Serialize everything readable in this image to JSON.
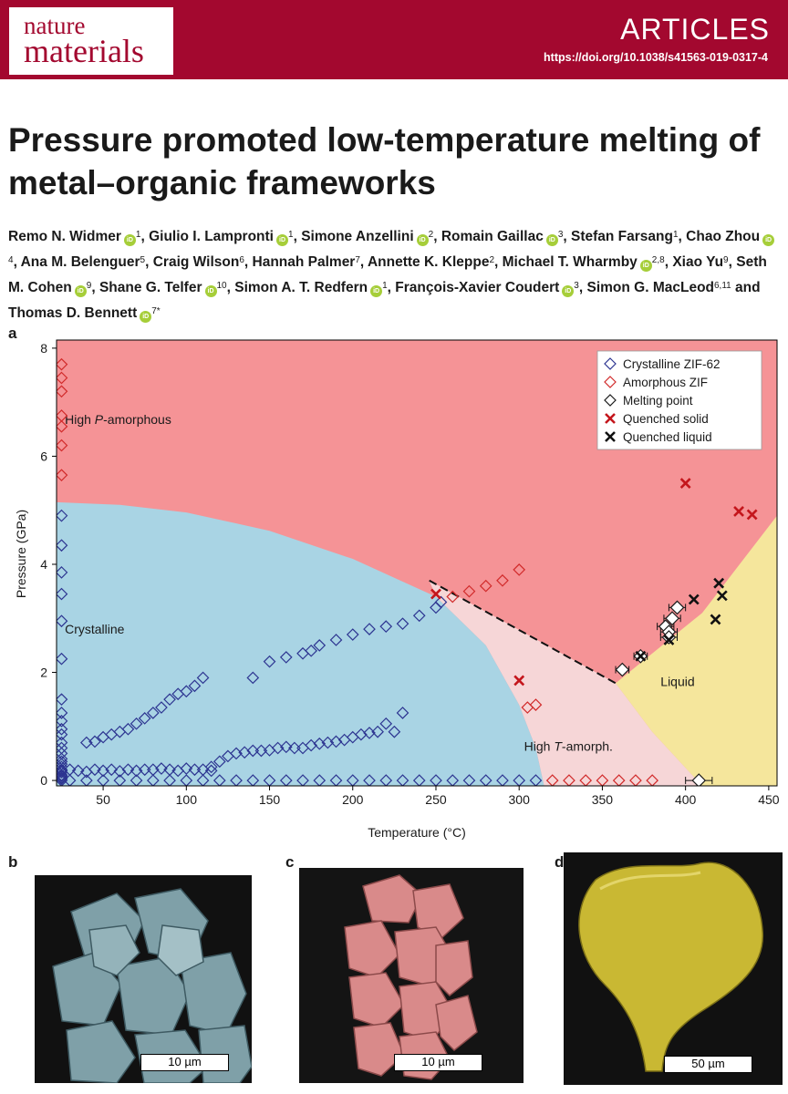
{
  "journal": {
    "line1": "nature",
    "line2": "materials"
  },
  "section": "ARTICLES",
  "doi": "https://doi.org/10.1038/s41563-019-0317-4",
  "title": "Pressure promoted low-temperature melting of metal–organic frameworks",
  "authors": [
    {
      "name": "Remo N. Widmer",
      "orcid": true,
      "aff": "1"
    },
    {
      "name": "Giulio I. Lampronti",
      "orcid": true,
      "aff": "1"
    },
    {
      "name": "Simone Anzellini",
      "orcid": true,
      "aff": "2"
    },
    {
      "name": "Romain Gaillac",
      "orcid": true,
      "aff": "3"
    },
    {
      "name": "Stefan Farsang",
      "orcid": false,
      "aff": "1"
    },
    {
      "name": "Chao Zhou",
      "orcid": true,
      "aff": "4"
    },
    {
      "name": "Ana M. Belenguer",
      "orcid": false,
      "aff": "5"
    },
    {
      "name": "Craig Wilson",
      "orcid": false,
      "aff": "6"
    },
    {
      "name": "Hannah Palmer",
      "orcid": false,
      "aff": "7"
    },
    {
      "name": "Annette K. Kleppe",
      "orcid": false,
      "aff": "2"
    },
    {
      "name": "Michael T. Wharmby",
      "orcid": true,
      "aff": "2,8"
    },
    {
      "name": "Xiao Yu",
      "orcid": false,
      "aff": "9"
    },
    {
      "name": "Seth M. Cohen",
      "orcid": true,
      "aff": "9"
    },
    {
      "name": "Shane G. Telfer",
      "orcid": true,
      "aff": "10"
    },
    {
      "name": "Simon A. T. Redfern",
      "orcid": true,
      "aff": "1"
    },
    {
      "name": "François-Xavier Coudert",
      "orcid": true,
      "aff": "3"
    },
    {
      "name": "Simon G. MacLeod",
      "orcid": false,
      "aff": "6,11"
    },
    {
      "name": "Thomas D. Bennett",
      "orcid": true,
      "aff": "7*"
    }
  ],
  "author_separator": ", ",
  "author_last_joiner": " and ",
  "orcid_badge": "iD",
  "panels": {
    "a": "a",
    "b": "b",
    "c": "c",
    "d": "d"
  },
  "chart_data": {
    "type": "scatter",
    "xlabel": "Temperature (°C)",
    "ylabel": "Pressure (GPa)",
    "xlim": [
      22,
      455
    ],
    "ylim": [
      -0.1,
      8.15
    ],
    "xticks": [
      50,
      100,
      150,
      200,
      250,
      300,
      350,
      400,
      450
    ],
    "yticks": [
      0,
      2,
      4,
      6,
      8
    ],
    "legend_position": "top-right",
    "colors": {
      "high_p_amorphous": "#f59396",
      "crystalline": "#a9d4e4",
      "high_t_amorph": "#f6d6d7",
      "liquid": "#f5e69c",
      "crystalline_marker": "#2d3591",
      "amorphous_marker": "#d12a2a",
      "melting_marker": "#1a1a1a",
      "quenched_solid": "#c4161c",
      "quenched_liquid": "#111111"
    },
    "regions": [
      {
        "name": "High P-amorphous",
        "label_prefix": "High ",
        "label_italic": "P",
        "label_suffix": "-amorphous",
        "label_at": [
          27,
          6.6
        ]
      },
      {
        "name": "Crystalline",
        "label_prefix": "Crystalline",
        "label_italic": "",
        "label_suffix": "",
        "label_at": [
          27,
          2.72
        ]
      },
      {
        "name": "High T-amorph.",
        "label_prefix": "High ",
        "label_italic": "T",
        "label_suffix": "-amorph.",
        "label_at": [
          303,
          0.55
        ]
      },
      {
        "name": "Liquid",
        "label_prefix": "Liquid",
        "label_italic": "",
        "label_suffix": "",
        "label_at": [
          385,
          1.75
        ]
      }
    ],
    "boundaries": {
      "crystalline": [
        [
          22,
          5.15
        ],
        [
          60,
          5.1
        ],
        [
          100,
          4.96
        ],
        [
          150,
          4.62
        ],
        [
          200,
          4.1
        ],
        [
          250,
          3.4
        ],
        [
          280,
          2.5
        ],
        [
          300,
          1.4
        ],
        [
          310,
          0.6
        ],
        [
          315,
          -0.1
        ]
      ],
      "dashed_melting_line": [
        [
          246,
          3.7
        ],
        [
          358,
          1.8
        ]
      ],
      "liquid": [
        [
          358,
          1.8
        ],
        [
          410,
          3.1
        ],
        [
          455,
          4.9
        ],
        [
          455,
          -0.1
        ],
        [
          410,
          -0.1
        ],
        [
          380,
          0.9
        ]
      ]
    },
    "series": [
      {
        "name": "Crystalline ZIF-62",
        "marker": "diamond-open",
        "color": "#2d3591",
        "x": [
          25,
          25,
          25,
          25,
          25,
          25,
          25,
          25,
          25,
          25,
          25,
          25,
          25,
          25,
          25,
          25,
          25,
          25,
          25,
          25,
          25,
          25,
          25,
          25,
          25,
          25,
          30,
          35,
          40,
          45,
          50,
          55,
          60,
          65,
          70,
          75,
          80,
          85,
          90,
          95,
          100,
          105,
          110,
          115,
          40,
          45,
          50,
          55,
          60,
          65,
          70,
          75,
          80,
          85,
          90,
          95,
          100,
          105,
          110,
          115,
          120,
          125,
          130,
          135,
          140,
          145,
          150,
          155,
          160,
          165,
          170,
          175,
          180,
          185,
          190,
          195,
          200,
          205,
          210,
          215,
          220,
          225,
          230,
          140,
          150,
          160,
          170,
          175,
          180,
          190,
          200,
          210,
          220,
          230,
          240,
          250,
          253,
          30,
          40,
          50,
          60,
          70,
          80,
          90,
          100,
          110,
          120,
          130,
          140,
          150,
          160,
          170,
          180,
          190,
          200,
          210,
          220,
          230,
          240,
          250,
          260,
          270,
          280,
          290,
          300,
          310
        ],
        "y": [
          4.9,
          4.35,
          3.85,
          3.45,
          2.95,
          2.25,
          1.5,
          1.25,
          1.1,
          0.95,
          0.85,
          0.7,
          0.6,
          0.5,
          0.4,
          0.35,
          0.3,
          0.25,
          0.2,
          0.18,
          0.15,
          0.1,
          0.08,
          0.05,
          0.03,
          0,
          0.2,
          0.18,
          0.16,
          0.2,
          0.18,
          0.2,
          0.17,
          0.2,
          0.18,
          0.2,
          0.2,
          0.22,
          0.2,
          0.18,
          0.22,
          0.2,
          0.2,
          0.18,
          0.7,
          0.72,
          0.8,
          0.85,
          0.9,
          0.95,
          1.05,
          1.15,
          1.25,
          1.35,
          1.5,
          1.6,
          1.65,
          1.75,
          1.9,
          0.25,
          0.35,
          0.45,
          0.5,
          0.52,
          0.55,
          0.55,
          0.56,
          0.6,
          0.62,
          0.6,
          0.6,
          0.65,
          0.68,
          0.7,
          0.72,
          0.75,
          0.8,
          0.85,
          0.88,
          0.9,
          1.05,
          0.9,
          1.25,
          1.9,
          2.2,
          2.28,
          2.35,
          2.4,
          2.5,
          2.6,
          2.7,
          2.8,
          2.85,
          2.9,
          3.05,
          3.2,
          3.3,
          0,
          0,
          0,
          0,
          0,
          0,
          0,
          0,
          0,
          0,
          0,
          0,
          0,
          0,
          0,
          0,
          0,
          0,
          0,
          0,
          0,
          0,
          0,
          0,
          0,
          0,
          0,
          0,
          0
        ]
      },
      {
        "name": "Amorphous ZIF",
        "marker": "diamond-open",
        "color": "#d12a2a",
        "x": [
          25,
          25,
          25,
          25,
          25,
          25,
          25,
          25,
          260,
          270,
          280,
          290,
          300,
          305,
          310,
          320,
          330,
          340,
          350,
          360,
          370,
          380
        ],
        "y": [
          7.7,
          7.45,
          7.2,
          6.75,
          6.55,
          6.2,
          5.65,
          5.9,
          3.4,
          3.5,
          3.6,
          3.7,
          3.9,
          1.35,
          1.4,
          0,
          0,
          0,
          0,
          0,
          0,
          0
        ],
        "omit_indices": [
          7
        ]
      },
      {
        "name": "Melting point",
        "marker": "diamond-open-fill",
        "color": "#1a1a1a",
        "x": [
          362,
          373,
          388,
          390,
          390,
          392,
          395,
          408
        ],
        "y": [
          2.05,
          2.3,
          2.85,
          2.75,
          2.65,
          3.0,
          3.2,
          0
        ],
        "xerr": [
          4,
          4,
          5,
          5,
          5,
          5,
          5,
          8
        ]
      },
      {
        "name": "Quenched solid",
        "marker": "x",
        "color": "#c4161c",
        "x": [
          250,
          300,
          400,
          432,
          440
        ],
        "y": [
          3.45,
          1.85,
          5.5,
          4.98,
          4.92
        ]
      },
      {
        "name": "Quenched liquid",
        "marker": "x",
        "color": "#111111",
        "x": [
          373,
          390,
          405,
          418,
          420,
          422
        ],
        "y": [
          2.3,
          2.6,
          3.35,
          2.98,
          3.65,
          3.42
        ]
      }
    ]
  },
  "micrographs": [
    {
      "panel": "b",
      "scalebar": "10 µm",
      "color": "#7fa0a8"
    },
    {
      "panel": "c",
      "scalebar": "10 µm",
      "color": "#d98a8a"
    },
    {
      "panel": "d",
      "scalebar": "50 µm",
      "color": "#c9b833"
    }
  ]
}
